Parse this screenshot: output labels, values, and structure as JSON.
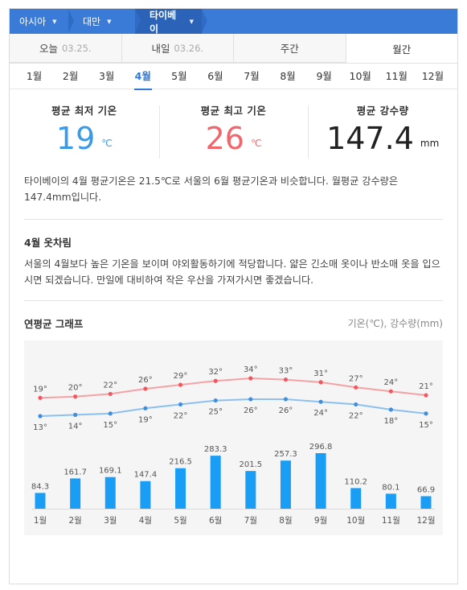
{
  "breadcrumb": [
    {
      "label": "아시아",
      "icon": "chevron-down-icon"
    },
    {
      "label": "대만",
      "icon": "chevron-down-icon"
    },
    {
      "label": "타이베이",
      "icon": "chevron-down-icon"
    }
  ],
  "day_tabs": [
    {
      "label": "오늘",
      "date": "03.25."
    },
    {
      "label": "내일",
      "date": "03.26."
    },
    {
      "label": "주간",
      "date": ""
    },
    {
      "label": "월간",
      "date": ""
    }
  ],
  "active_day_tab": "월간",
  "months": [
    "1월",
    "2월",
    "3월",
    "4월",
    "5월",
    "6월",
    "7월",
    "8월",
    "9월",
    "10월",
    "11월",
    "12월"
  ],
  "active_month": "4월",
  "stats": {
    "low": {
      "label": "평균 최저 기온",
      "value": "19",
      "unit": "℃"
    },
    "high": {
      "label": "평균 최고 기온",
      "value": "26",
      "unit": "℃"
    },
    "rain": {
      "label": "평균 강수량",
      "value": "147.4",
      "unit": "mm"
    }
  },
  "summary": "타이베이의 4월 평균기온은 21.5℃로 서울의 6월 평균기온과 비슷합니다. 월평균 강수량은 147.4mm입니다.",
  "clothing": {
    "title": "4월 옷차림",
    "text": "서울의 4월보다 높은 기온을 보이며 야외활동하기에 적당합니다. 얇은 긴소매 옷이나 반소매 옷을 입으시면 되겠습니다. 만일에 대비하여 작은 우산을 가져가시면 좋겠습니다."
  },
  "graph": {
    "title": "연평균 그래프",
    "units": "기온(℃), 강수량(mm)"
  },
  "colors": {
    "accent": "#3b7bd8",
    "high_line": "#f0666b",
    "low_line": "#3a9ae6",
    "bar": "#1a9ef5"
  },
  "chart_data": {
    "type": "line+bar",
    "categories": [
      "1월",
      "2월",
      "3월",
      "4월",
      "5월",
      "6월",
      "7월",
      "8월",
      "9월",
      "10월",
      "11월",
      "12월"
    ],
    "series": [
      {
        "name": "최고 기온",
        "type": "line",
        "values": [
          19,
          20,
          22,
          26,
          29,
          32,
          34,
          33,
          31,
          27,
          24,
          21
        ],
        "label_suffix": "°"
      },
      {
        "name": "최저 기온",
        "type": "line",
        "values": [
          13,
          14,
          15,
          19,
          22,
          25,
          26,
          26,
          24,
          22,
          18,
          15
        ],
        "label_suffix": "°"
      },
      {
        "name": "강수량",
        "type": "bar",
        "values": [
          84.3,
          161.7,
          169.1,
          147.4,
          216.5,
          283.3,
          201.5,
          257.3,
          296.8,
          110.2,
          80.1,
          66.9
        ]
      }
    ]
  }
}
